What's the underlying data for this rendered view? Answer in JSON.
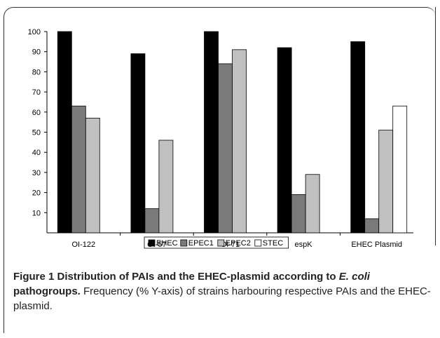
{
  "chart_data": {
    "type": "bar",
    "categories": [
      "OI-122",
      "OI-57",
      "OI-71",
      "espK",
      "EHEC Plasmid"
    ],
    "series": [
      {
        "name": "EHEC",
        "values": [
          100,
          89,
          100,
          92,
          95
        ],
        "color": "#000000"
      },
      {
        "name": "EPEC1",
        "values": [
          63,
          12,
          84,
          19,
          7
        ],
        "color": "#7a7a7a"
      },
      {
        "name": "EPEC2",
        "values": [
          57,
          46,
          91,
          29,
          51
        ],
        "color": "#c0c0c0"
      },
      {
        "name": "STEC",
        "values": [
          0,
          0,
          0,
          0,
          63
        ],
        "color": "#ffffff"
      }
    ],
    "title": "",
    "xlabel": "",
    "ylabel": "",
    "ylim": [
      0,
      100
    ],
    "yticks": [
      10,
      20,
      30,
      40,
      50,
      60,
      70,
      80,
      90,
      100
    ],
    "grid": false,
    "legend": "bottom"
  },
  "caption": {
    "bold_part1": "Figure 1 Distribution of PAIs and the EHEC-plasmid according to ",
    "bold_italic": "E. coli",
    "bold_part2": " pathogroups.",
    "normal": " Frequency (% Y-axis) of strains harbouring respective PAIs and the EHEC-plasmid."
  }
}
